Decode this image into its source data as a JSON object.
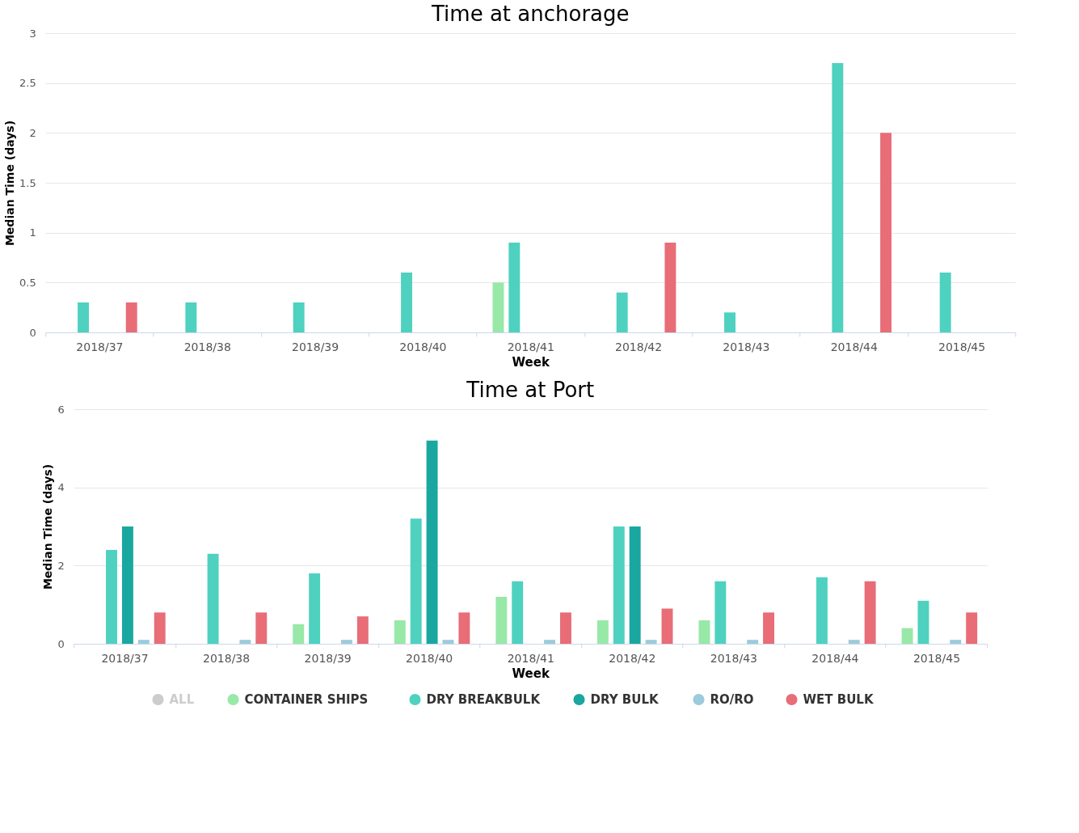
{
  "chart_data": [
    {
      "type": "bar",
      "title": "Time at anchorage",
      "xlabel": "Week",
      "ylabel": "Median Time (days)",
      "categories": [
        "2018/37",
        "2018/38",
        "2018/39",
        "2018/40",
        "2018/41",
        "2018/42",
        "2018/43",
        "2018/44",
        "2018/45"
      ],
      "ylim": [
        0,
        3
      ],
      "yticks": [
        0,
        0.5,
        1,
        1.5,
        2,
        2.5,
        3
      ],
      "grid": "y",
      "series": [
        {
          "color": "#cccccc",
          "values": [
            null,
            null,
            null,
            null,
            null,
            null,
            null,
            null,
            null
          ]
        },
        {
          "color": "#98e8a8",
          "values": [
            null,
            null,
            null,
            null,
            0.5,
            null,
            null,
            null,
            null
          ]
        },
        {
          "color": "#4fd1c0",
          "values": [
            0.3,
            0.3,
            0.3,
            0.6,
            0.9,
            0.4,
            0.2,
            2.7,
            0.6
          ]
        },
        {
          "color": "#1aa7a0",
          "values": [
            null,
            null,
            null,
            null,
            null,
            null,
            null,
            null,
            null
          ]
        },
        {
          "color": "#9ccbdb",
          "values": [
            null,
            null,
            null,
            null,
            null,
            null,
            null,
            null,
            null
          ]
        },
        {
          "color": "#e86d77",
          "values": [
            0.3,
            null,
            null,
            null,
            null,
            0.9,
            null,
            2.0,
            null
          ]
        }
      ]
    },
    {
      "type": "bar",
      "title": "Time at Port",
      "xlabel": "Week",
      "ylabel": "Median Time (days)",
      "categories": [
        "2018/37",
        "2018/38",
        "2018/39",
        "2018/40",
        "2018/41",
        "2018/42",
        "2018/43",
        "2018/44",
        "2018/45"
      ],
      "ylim": [
        0,
        6
      ],
      "yticks": [
        0,
        2,
        4,
        6
      ],
      "grid": "y",
      "legend": "bottom",
      "series": [
        {
          "name": "ALL",
          "color": "#cccccc",
          "values": [
            null,
            null,
            null,
            null,
            null,
            null,
            null,
            null,
            null
          ]
        },
        {
          "name": "CONTAINER SHIPS",
          "color": "#98e8a8",
          "values": [
            null,
            null,
            0.5,
            0.6,
            1.2,
            0.6,
            0.6,
            null,
            0.4
          ]
        },
        {
          "name": "DRY BREAKBULK",
          "color": "#4fd1c0",
          "values": [
            2.4,
            2.3,
            1.8,
            3.2,
            1.6,
            3.0,
            1.6,
            1.7,
            1.1
          ]
        },
        {
          "name": "DRY BULK",
          "color": "#1aa7a0",
          "values": [
            3.0,
            null,
            null,
            5.2,
            null,
            3.0,
            null,
            null,
            null
          ]
        },
        {
          "name": "RO/RO",
          "color": "#9ccbdb",
          "values": [
            0.1,
            0.1,
            0.1,
            0.1,
            0.1,
            0.1,
            0.1,
            0.1,
            0.1
          ]
        },
        {
          "name": "WET BULK",
          "color": "#e86d77",
          "values": [
            0.8,
            0.8,
            0.7,
            0.8,
            0.8,
            0.9,
            0.8,
            1.6,
            0.8
          ]
        }
      ]
    }
  ]
}
